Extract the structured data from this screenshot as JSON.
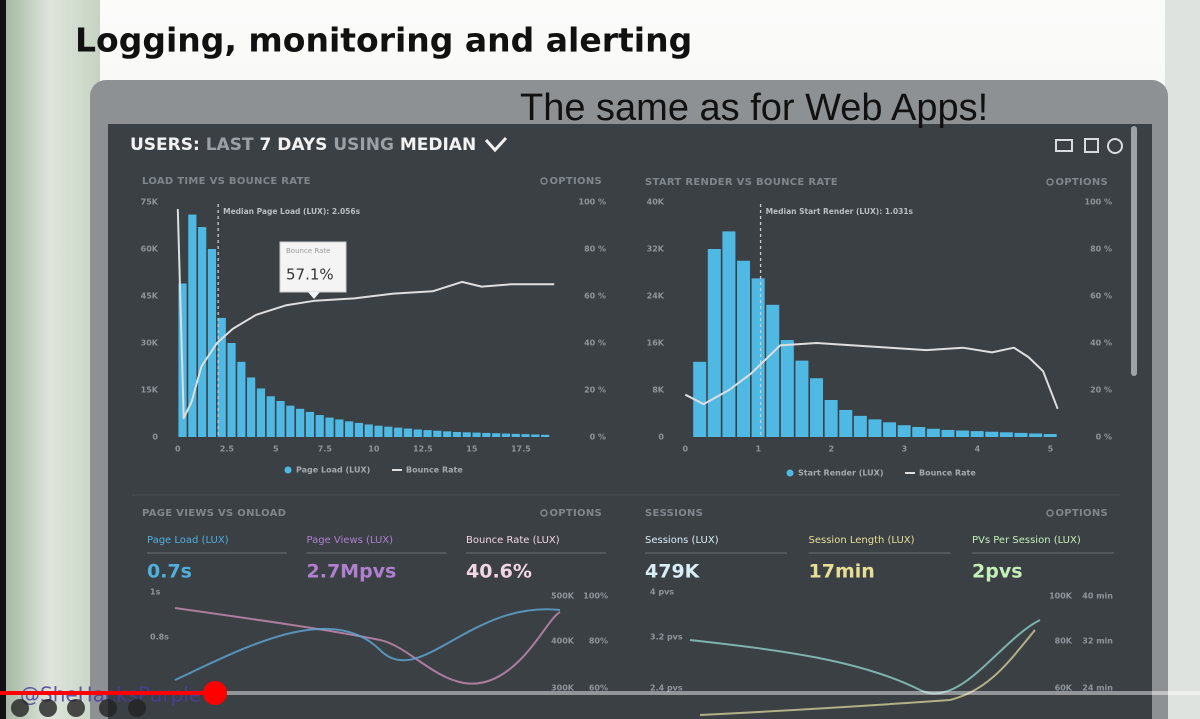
{
  "slide": {
    "title": "Logging, monitoring and alerting",
    "subtitle": "The same as for Web Apps!"
  },
  "dashboard": {
    "heading": {
      "users": "USERS:",
      "last": "LAST",
      "days": "7 DAYS",
      "using": "USING",
      "median": "MEDIAN"
    }
  },
  "chart_data": [
    {
      "type": "histogram",
      "title": "LOAD TIME VS BOUNCE RATE",
      "options": "OPTIONS",
      "annotation": "Median Page Load (LUX): 2.056s",
      "median": 2.056,
      "tooltip": {
        "label": "Bounce Rate",
        "value": "57.1%"
      },
      "bins": [
        0,
        0.5,
        1,
        1.5,
        2,
        2.5,
        3,
        3.5,
        4,
        4.5,
        5,
        5.5,
        6,
        6.5,
        7,
        7.5,
        8,
        8.5,
        9,
        9.5,
        10,
        10.5,
        11,
        11.5,
        12,
        12.5,
        13,
        13.5,
        14,
        14.5,
        15,
        15.5,
        16,
        16.5,
        17,
        17.5,
        18,
        18.5,
        19
      ],
      "series": [
        {
          "name": "Page Load (LUX)",
          "color": "#4fb9e3",
          "values": [
            49,
            71,
            67,
            60,
            38,
            30,
            24,
            19,
            15.5,
            13,
            11.5,
            10,
            9,
            8,
            7,
            6.2,
            5.6,
            5,
            4.5,
            4,
            3.6,
            3.3,
            3,
            2.7,
            2.4,
            2.2,
            2,
            1.8,
            1.6,
            1.5,
            1.4,
            1.3,
            1.2,
            1.1,
            1,
            0.9,
            0.8,
            0.7
          ]
        },
        {
          "name": "Bounce Rate",
          "color": "#dedede",
          "axis": "y2",
          "x": [
            0,
            0.3,
            0.7,
            1.2,
            2,
            2.8,
            4,
            5.5,
            7,
            9,
            11,
            13,
            14.5,
            15.5,
            17,
            19.2
          ],
          "values": [
            97,
            8,
            15,
            30,
            40,
            46,
            52,
            56,
            58,
            59,
            61,
            62,
            66,
            64,
            65,
            65
          ]
        }
      ],
      "xlim": [
        -0.4,
        19.6
      ],
      "xticks": [
        0,
        2.5,
        5,
        7.5,
        10,
        12.5,
        15,
        17.5
      ],
      "ylim": [
        0,
        75
      ],
      "yticks": [
        {
          "value": 75,
          "label": "75K"
        },
        {
          "value": 60,
          "label": "60K"
        },
        {
          "value": 45,
          "label": "45K"
        },
        {
          "value": 30,
          "label": "30K"
        },
        {
          "value": 15,
          "label": "15K"
        },
        0
      ],
      "y2lim": [
        0,
        100
      ],
      "y2ticks": [
        {
          "value": 100,
          "label": "100 %"
        },
        {
          "value": 80,
          "label": "80 %"
        },
        {
          "value": 60,
          "label": "60 %"
        },
        {
          "value": 40,
          "label": "40 %"
        },
        {
          "value": 20,
          "label": "20 %"
        },
        {
          "value": 0,
          "label": "0 %"
        }
      ]
    },
    {
      "type": "histogram",
      "title": "START RENDER VS BOUNCE RATE",
      "options": "OPTIONS",
      "annotation": "Median Start Render (LUX): 1.031s",
      "median": 1.031,
      "bins": [
        0.1,
        0.3,
        0.5,
        0.7,
        0.9,
        1.1,
        1.3,
        1.5,
        1.7,
        1.9,
        2.1,
        2.3,
        2.5,
        2.7,
        2.9,
        3.1,
        3.3,
        3.5,
        3.7,
        3.9,
        4.1,
        4.3,
        4.5,
        4.7,
        4.9,
        5.1
      ],
      "series": [
        {
          "name": "Start Render (LUX)",
          "color": "#4fb9e3",
          "values": [
            12.8,
            32,
            35,
            30,
            27,
            22.5,
            16.5,
            13,
            10,
            6.3,
            4.6,
            3.6,
            3,
            2.5,
            2,
            1.7,
            1.4,
            1.2,
            1.1,
            1,
            0.9,
            0.8,
            0.7,
            0.6,
            0.5
          ]
        },
        {
          "name": "Bounce Rate",
          "color": "#dedede",
          "axis": "y2",
          "x": [
            0,
            0.25,
            0.6,
            0.9,
            1.3,
            1.8,
            2.3,
            2.8,
            3.3,
            3.8,
            4.2,
            4.5,
            4.7,
            4.9,
            5.1
          ],
          "values": [
            18,
            14,
            20,
            27,
            39,
            40,
            39,
            38,
            37,
            38,
            36,
            38,
            34,
            28,
            12
          ]
        }
      ],
      "xlim": [
        -0.1,
        5.2
      ],
      "xticks": [
        0,
        1,
        2,
        3,
        4,
        5
      ],
      "ylim": [
        0,
        40
      ],
      "yticks": [
        {
          "value": 40,
          "label": "40K"
        },
        {
          "value": 32,
          "label": "32K"
        },
        {
          "value": 24,
          "label": "24K"
        },
        {
          "value": 16,
          "label": "16K"
        },
        {
          "value": 8,
          "label": "8K"
        },
        0
      ],
      "y2lim": [
        0,
        100
      ],
      "y2ticks": [
        {
          "value": 100,
          "label": "100 %"
        },
        {
          "value": 80,
          "label": "80 %"
        },
        {
          "value": 60,
          "label": "60 %"
        },
        {
          "value": 40,
          "label": "40 %"
        },
        {
          "value": 20,
          "label": "20 %"
        },
        {
          "value": 0,
          "label": "0 %"
        }
      ]
    }
  ],
  "cards": [
    {
      "title": "PAGE VIEWS VS ONLOAD",
      "options": "OPTIONS",
      "metrics": [
        {
          "label": "Page Load (LUX)",
          "value": "0.7s"
        },
        {
          "label": "Page Views (LUX)",
          "value": "2.7Mpvs"
        },
        {
          "label": "Bounce Rate (LUX)",
          "value": "40.6%"
        }
      ],
      "axes": [
        [
          "1s",
          "0.8s"
        ],
        [
          "500K",
          "400K",
          "300K"
        ],
        [
          "100%",
          "80%",
          "60%"
        ]
      ]
    },
    {
      "title": "SESSIONS",
      "options": "OPTIONS",
      "metrics": [
        {
          "label": "Sessions (LUX)",
          "value": "479K"
        },
        {
          "label": "Session Length (LUX)",
          "value": "17min"
        },
        {
          "label": "PVs Per Session (LUX)",
          "value": "2pvs"
        }
      ],
      "axes": [
        [
          "4 pvs",
          "3.2 pvs",
          "2.4 pvs"
        ],
        [
          "100K",
          "80K",
          "60K"
        ],
        [
          "40 min",
          "32 min",
          "24 min"
        ]
      ]
    }
  ],
  "player": {
    "watermark": "@SheHacksPurple"
  }
}
